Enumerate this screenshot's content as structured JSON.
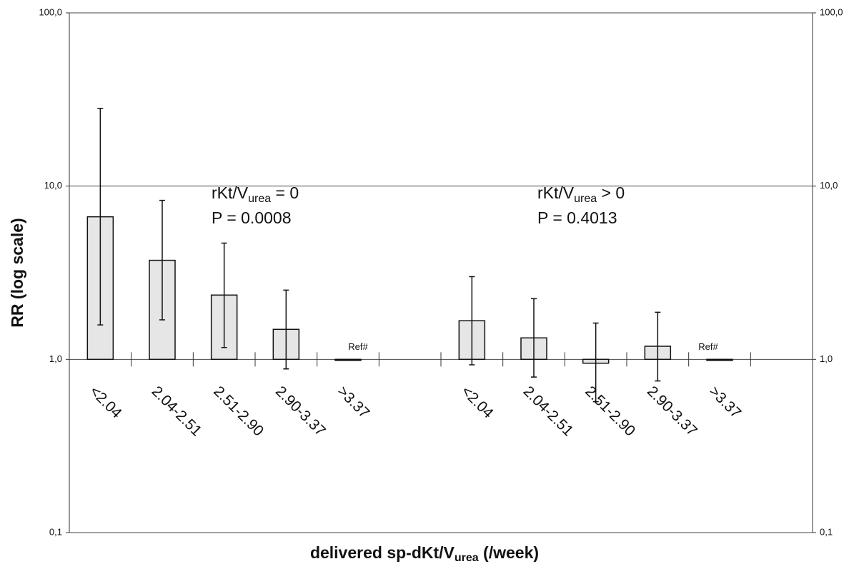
{
  "chart_data": {
    "type": "bar",
    "log_scale": true,
    "grid": true,
    "y_label": "RR (log scale)",
    "x_label": [
      "delivered sp-dKt/V",
      "urea",
      " (/week)"
    ],
    "categories": [
      "<2.04",
      "2.04-2.51",
      "2.51-2.90",
      "2.90-3.37",
      ">3.37",
      null,
      "<2.04",
      "2.04-2.51",
      "2.51-2.90",
      "2.90-3.37",
      ">3.37",
      null
    ],
    "values": [
      6.65,
      3.73,
      2.35,
      1.49,
      1.0,
      null,
      1.67,
      1.33,
      0.95,
      1.19,
      1.0,
      null
    ],
    "ci_low": [
      1.58,
      1.69,
      1.17,
      0.88,
      null,
      null,
      0.93,
      0.79,
      0.57,
      0.75,
      null,
      null
    ],
    "ci_high": [
      28.1,
      8.27,
      4.69,
      2.51,
      null,
      null,
      3.0,
      2.24,
      1.62,
      1.87,
      null,
      null
    ],
    "value_labels": [
      null,
      null,
      null,
      null,
      "Ref#",
      null,
      null,
      null,
      null,
      null,
      "Ref#",
      null
    ],
    "color": "#e6e6e6",
    "edge_color": "#111111",
    "annotations": [
      {
        "label": [
          "rKt/V",
          "urea",
          " = 0"
        ],
        "p": "P = 0.0008"
      },
      {
        "label": [
          "rKt/V",
          "urea",
          " > 0"
        ],
        "p": "P = 0.4013"
      }
    ],
    "ylim": [
      0.1,
      100
    ],
    "yticks": [
      {
        "value": 0.1,
        "label": "0,1"
      },
      {
        "value": 1,
        "label": "1,0"
      },
      {
        "value": 10,
        "label": "10,0"
      },
      {
        "value": 100,
        "label": "100,0"
      }
    ],
    "y2lim": [
      0.1,
      100
    ],
    "y2ticks": [
      {
        "value": 0.1,
        "label": "0,1"
      },
      {
        "value": 1,
        "label": "1,0"
      },
      {
        "value": 10,
        "label": "10,0"
      },
      {
        "value": 100,
        "label": "100,0"
      }
    ]
  }
}
